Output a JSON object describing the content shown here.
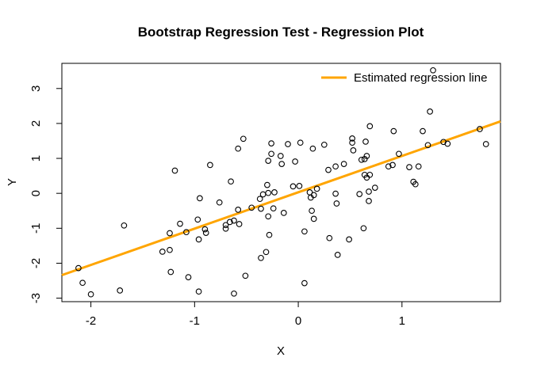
{
  "window": {
    "background": "#FFFFFF",
    "foreground": "#000000",
    "accent": "#FFA500"
  },
  "chart_data": {
    "type": "scatter",
    "title": "Bootstrap Regression Test - Regression Plot",
    "xlabel": "X",
    "ylabel": "Y",
    "xlim": [
      -2.28,
      1.95
    ],
    "ylim": [
      -3.1,
      3.72
    ],
    "xticks": [
      -2,
      -1,
      0,
      1
    ],
    "yticks": [
      -3,
      -2,
      -1,
      0,
      1,
      2,
      3
    ],
    "grid": false,
    "legend": {
      "position": "top-right",
      "entries": [
        {
          "label": "Estimated regression line",
          "color": "#FFA500",
          "type": "line"
        }
      ]
    },
    "regression_line": {
      "slope": 1.04,
      "intercept": 0.03,
      "color": "#FFA500"
    },
    "marker": {
      "shape": "open-circle",
      "color": "#000000"
    },
    "points": [
      [
        -1.19,
        0.65
      ],
      [
        -0.85,
        0.81
      ],
      [
        -0.65,
        0.34
      ],
      [
        -0.53,
        1.56
      ],
      [
        -0.58,
        1.28
      ],
      [
        -0.26,
        1.43
      ],
      [
        -0.1,
        1.41
      ],
      [
        0.02,
        1.45
      ],
      [
        -0.26,
        1.13
      ],
      [
        -0.17,
        1.07
      ],
      [
        -0.29,
        0.93
      ],
      [
        -0.16,
        0.84
      ],
      [
        -0.03,
        0.91
      ],
      [
        0.14,
        1.28
      ],
      [
        0.25,
        1.39
      ],
      [
        0.52,
        1.57
      ],
      [
        0.52,
        1.45
      ],
      [
        0.53,
        1.23
      ],
      [
        0.44,
        0.84
      ],
      [
        0.36,
        0.77
      ],
      [
        0.29,
        0.67
      ],
      [
        1.3,
        3.52
      ],
      [
        1.27,
        2.34
      ],
      [
        0.69,
        1.92
      ],
      [
        0.92,
        1.78
      ],
      [
        1.2,
        1.78
      ],
      [
        0.65,
        1.48
      ],
      [
        1.25,
        1.38
      ],
      [
        1.4,
        1.47
      ],
      [
        1.44,
        1.42
      ],
      [
        0.97,
        1.13
      ],
      [
        0.66,
        1.07
      ],
      [
        0.61,
        0.96
      ],
      [
        0.64,
        0.98
      ],
      [
        0.87,
        0.77
      ],
      [
        0.91,
        0.81
      ],
      [
        1.07,
        0.75
      ],
      [
        1.16,
        0.77
      ],
      [
        0.64,
        0.53
      ],
      [
        0.69,
        0.53
      ],
      [
        0.66,
        0.45
      ],
      [
        1.11,
        0.33
      ],
      [
        1.13,
        0.26
      ],
      [
        1.75,
        1.84
      ],
      [
        1.81,
        1.41
      ],
      [
        -0.3,
        0.24
      ],
      [
        -0.05,
        0.2
      ],
      [
        0.01,
        0.21
      ],
      [
        0.18,
        0.13
      ],
      [
        -0.34,
        -0.03
      ],
      [
        -0.29,
        0.01
      ],
      [
        -0.23,
        0.03
      ],
      [
        0.11,
        0.03
      ],
      [
        0.15,
        -0.05
      ],
      [
        0.12,
        -0.12
      ],
      [
        0.36,
        -0.01
      ],
      [
        0.37,
        -0.29
      ],
      [
        0.59,
        -0.02
      ],
      [
        0.68,
        0.05
      ],
      [
        0.74,
        0.16
      ],
      [
        0.68,
        -0.22
      ],
      [
        -0.76,
        -0.26
      ],
      [
        -0.58,
        -0.47
      ],
      [
        -0.45,
        -0.41
      ],
      [
        -0.37,
        -0.16
      ],
      [
        -0.36,
        -0.44
      ],
      [
        -0.29,
        -0.66
      ],
      [
        -0.24,
        -0.43
      ],
      [
        -0.14,
        -0.56
      ],
      [
        0.13,
        -0.5
      ],
      [
        0.15,
        -0.73
      ],
      [
        -0.66,
        -0.82
      ],
      [
        -0.62,
        -0.78
      ],
      [
        -0.7,
        -0.91
      ],
      [
        -0.7,
        -1.01
      ],
      [
        -0.57,
        -0.88
      ],
      [
        -0.28,
        -1.19
      ],
      [
        0.06,
        -1.09
      ],
      [
        0.3,
        -1.28
      ],
      [
        0.49,
        -1.32
      ],
      [
        0.63,
        -1.0
      ],
      [
        -0.31,
        -1.68
      ],
      [
        -0.36,
        -1.85
      ],
      [
        0.38,
        -1.76
      ],
      [
        -0.51,
        -2.36
      ],
      [
        0.06,
        -2.57
      ],
      [
        -0.62,
        -2.87
      ],
      [
        -0.95,
        -0.14
      ],
      [
        -1.68,
        -0.92
      ],
      [
        -1.14,
        -0.87
      ],
      [
        -0.97,
        -0.75
      ],
      [
        -1.24,
        -1.14
      ],
      [
        -1.08,
        -1.11
      ],
      [
        -0.9,
        -1.03
      ],
      [
        -0.89,
        -1.13
      ],
      [
        -0.96,
        -1.32
      ],
      [
        -1.31,
        -1.67
      ],
      [
        -1.24,
        -1.62
      ],
      [
        -2.12,
        -2.14
      ],
      [
        -2.08,
        -2.56
      ],
      [
        -2.0,
        -2.89
      ],
      [
        -1.72,
        -2.78
      ],
      [
        -1.23,
        -2.25
      ],
      [
        -1.06,
        -2.4
      ],
      [
        -0.96,
        -2.81
      ]
    ]
  }
}
